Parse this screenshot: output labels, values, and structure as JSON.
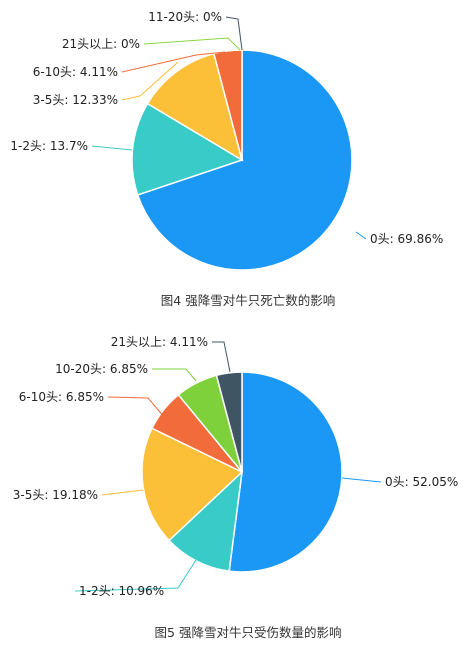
{
  "chart_data": [
    {
      "type": "pie",
      "caption": "图4 强降雪对牛只死亡数的影响",
      "slices": [
        {
          "label": "0头",
          "value": 69.86,
          "display": "0头: 69.86%",
          "color": "#1b98f5"
        },
        {
          "label": "1-2头",
          "value": 13.7,
          "display": "1-2头: 13.7%",
          "color": "#38cbc8"
        },
        {
          "label": "3-5头",
          "value": 12.33,
          "display": "3-5头: 12.33%",
          "color": "#fbbf38"
        },
        {
          "label": "6-10头",
          "value": 4.11,
          "display": "6-10头: 4.11%",
          "color": "#f26b3a"
        },
        {
          "label": "21头以上",
          "value": 0,
          "display": "21头以上: 0%",
          "color": "#8bd645"
        },
        {
          "label": "11-20头",
          "value": 0,
          "display": "11-20头: 0%",
          "color": "#3f5563"
        }
      ]
    },
    {
      "type": "pie",
      "caption": "图5 强降雪对牛只受伤数量的影响",
      "slices": [
        {
          "label": "0头",
          "value": 52.05,
          "display": "0头: 52.05%",
          "color": "#1b98f5"
        },
        {
          "label": "1-2头",
          "value": 10.96,
          "display": "1-2头: 10.96%",
          "color": "#38cbc8"
        },
        {
          "label": "3-5头",
          "value": 19.18,
          "display": "3-5头: 19.18%",
          "color": "#fbbf38"
        },
        {
          "label": "6-10头",
          "value": 6.85,
          "display": "6-10头: 6.85%",
          "color": "#f26b3a"
        },
        {
          "label": "10-20头",
          "value": 6.85,
          "display": "10-20头: 6.85%",
          "color": "#7ed13b"
        },
        {
          "label": "21头以上",
          "value": 4.11,
          "display": "21头以上: 4.11%",
          "color": "#3f5563"
        }
      ]
    }
  ]
}
